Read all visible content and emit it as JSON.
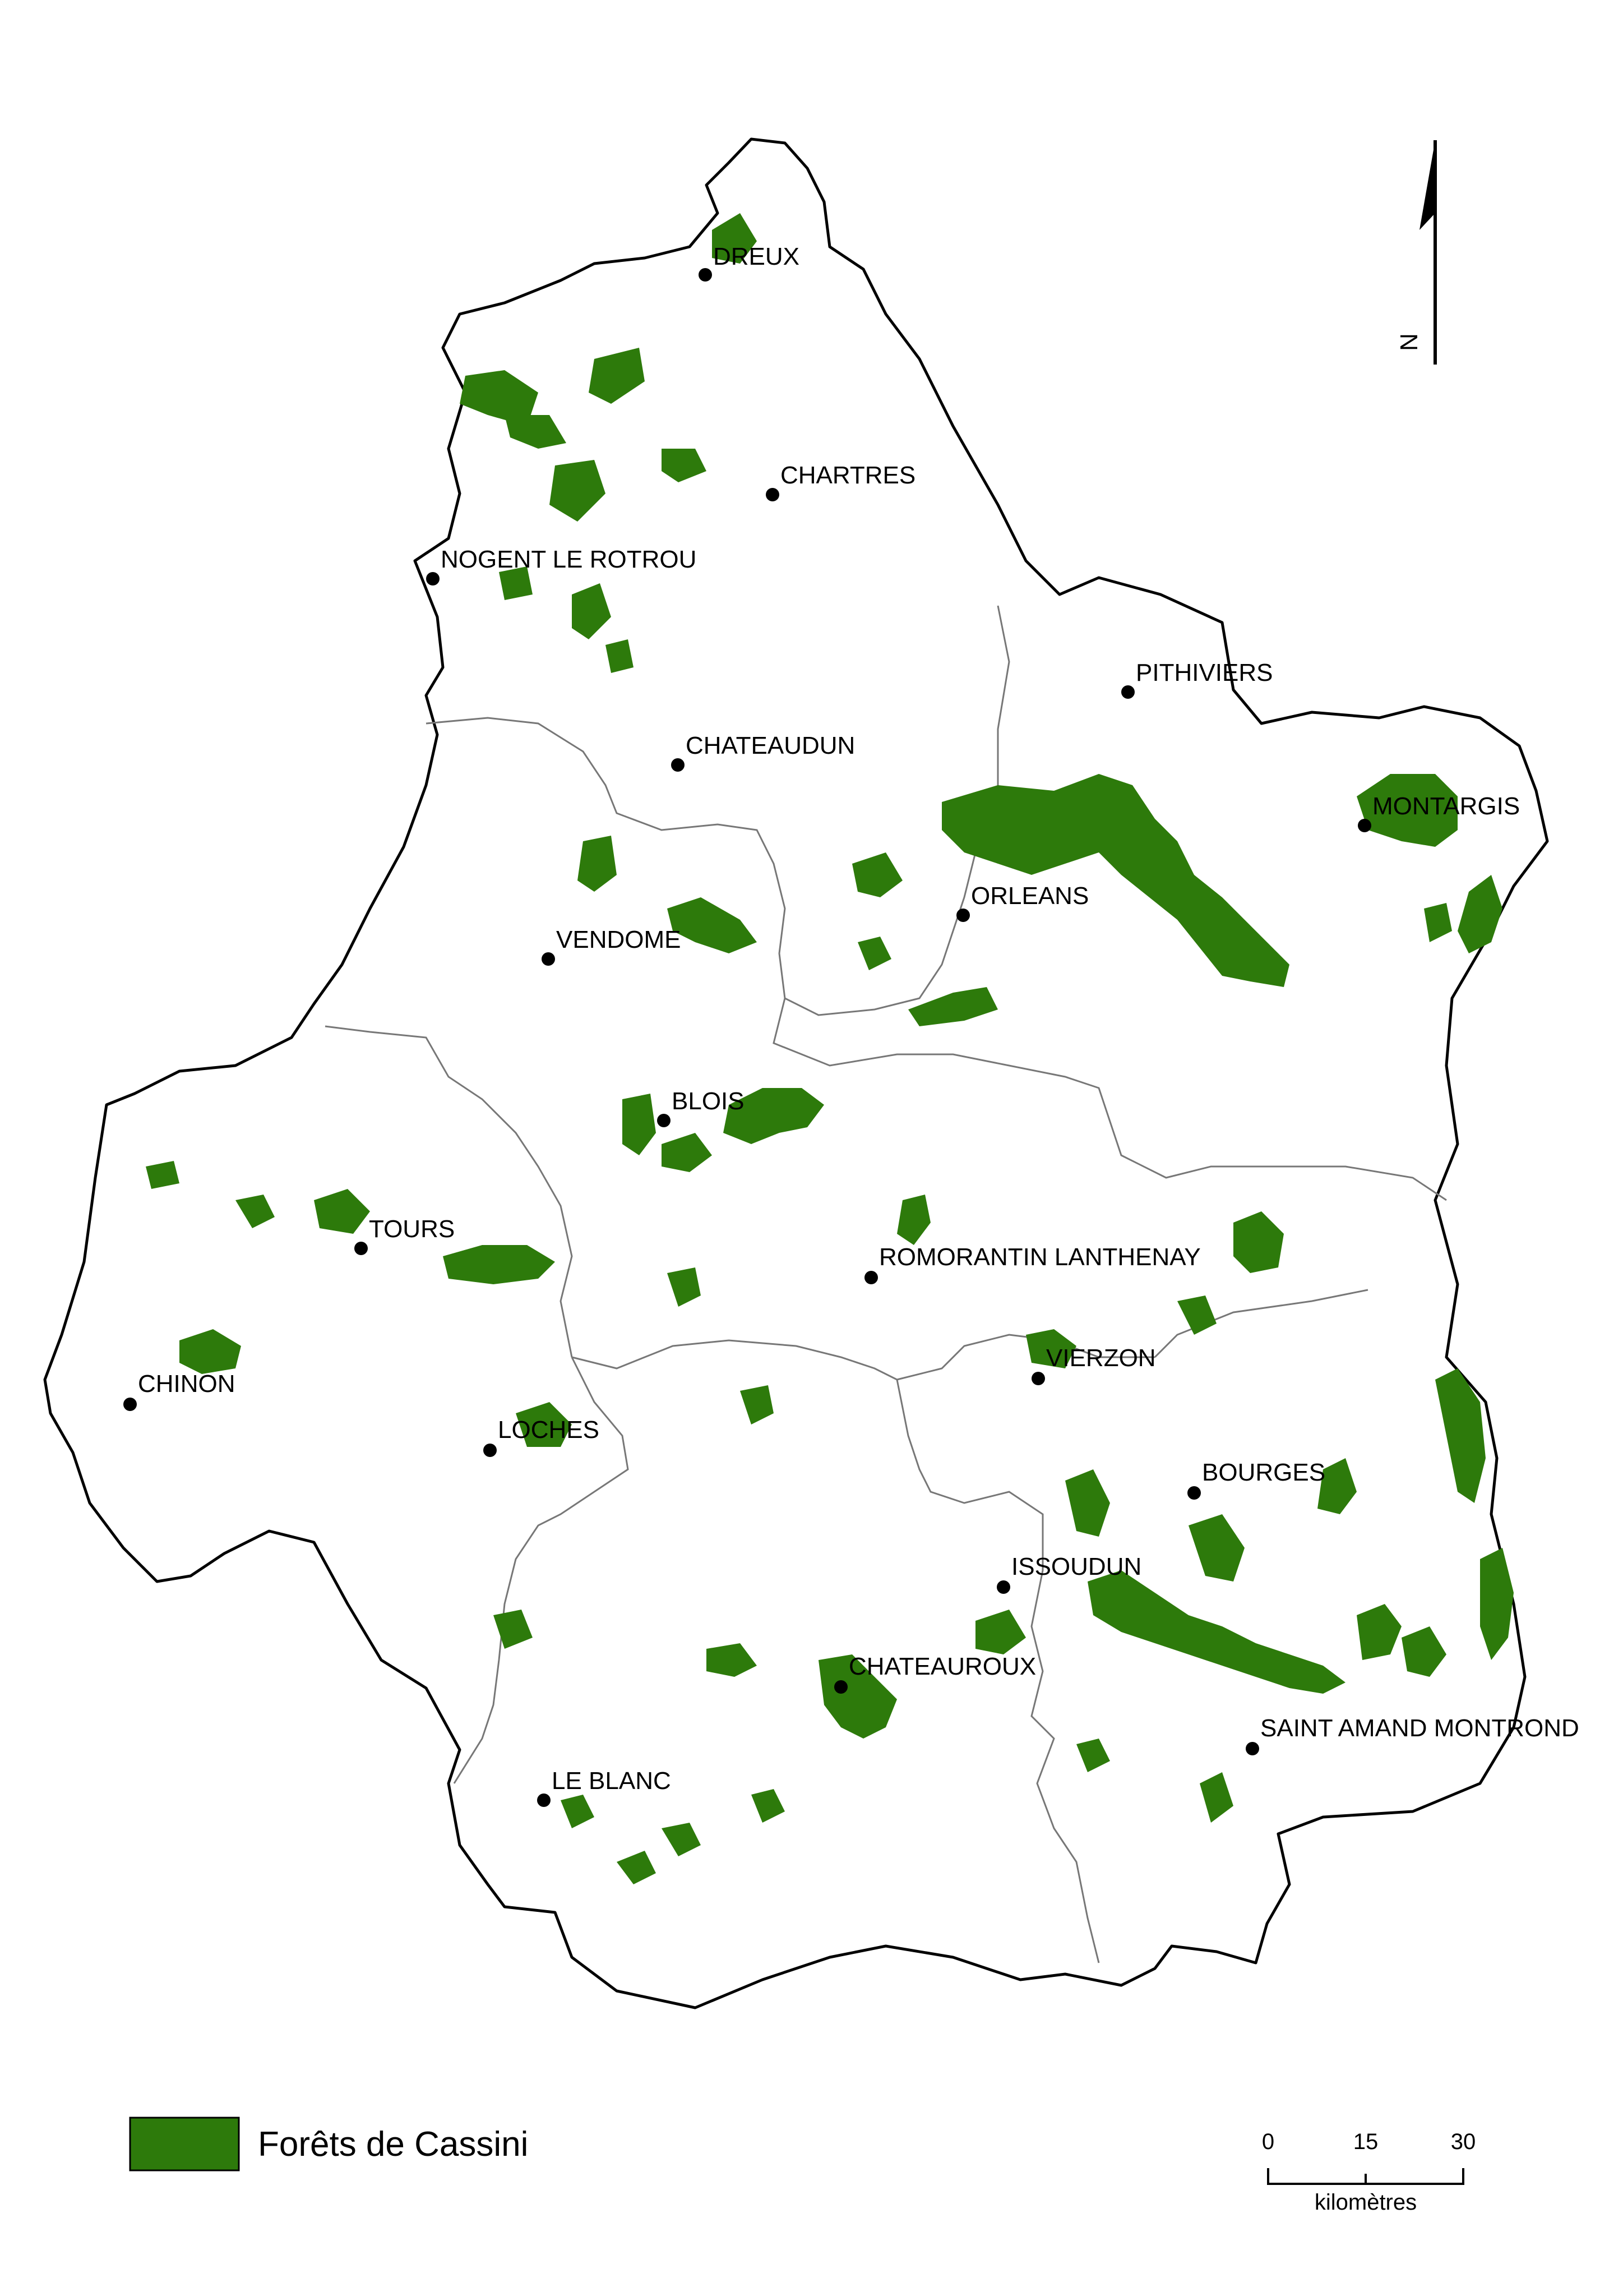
{
  "colors": {
    "forest": "#2d7a0b",
    "outline": "#000000",
    "internal_border": "#777777",
    "background": "#ffffff"
  },
  "cities": [
    {
      "key": "dreux",
      "name": "DREUX"
    },
    {
      "key": "chartres",
      "name": "CHARTRES"
    },
    {
      "key": "nogent",
      "name": "NOGENT LE ROTROU"
    },
    {
      "key": "pithiviers",
      "name": "PITHIVIERS"
    },
    {
      "key": "chateaudun",
      "name": "CHATEAUDUN"
    },
    {
      "key": "montargis",
      "name": "MONTARGIS"
    },
    {
      "key": "orleans",
      "name": "ORLEANS"
    },
    {
      "key": "vendome",
      "name": "VENDOME"
    },
    {
      "key": "blois",
      "name": "BLOIS"
    },
    {
      "key": "tours",
      "name": "TOURS"
    },
    {
      "key": "romorantin",
      "name": "ROMORANTIN LANTHENAY"
    },
    {
      "key": "vierzon",
      "name": "VIERZON"
    },
    {
      "key": "chinon",
      "name": "CHINON"
    },
    {
      "key": "loches",
      "name": "LOCHES"
    },
    {
      "key": "bourges",
      "name": "BOURGES"
    },
    {
      "key": "issoudun",
      "name": "ISSOUDUN"
    },
    {
      "key": "chateauroux",
      "name": "CHATEAUROUX"
    },
    {
      "key": "saint_amand",
      "name": "SAINT AMAND MONTROND"
    },
    {
      "key": "le_blanc",
      "name": "LE BLANC"
    }
  ],
  "legend": {
    "label": "Forêts de Cassini"
  },
  "scale_bar": {
    "ticks": [
      "0",
      "15",
      "30"
    ],
    "unit": "kilomètres"
  },
  "north_arrow": {
    "label": "N",
    "icon": "north-arrow-icon"
  }
}
